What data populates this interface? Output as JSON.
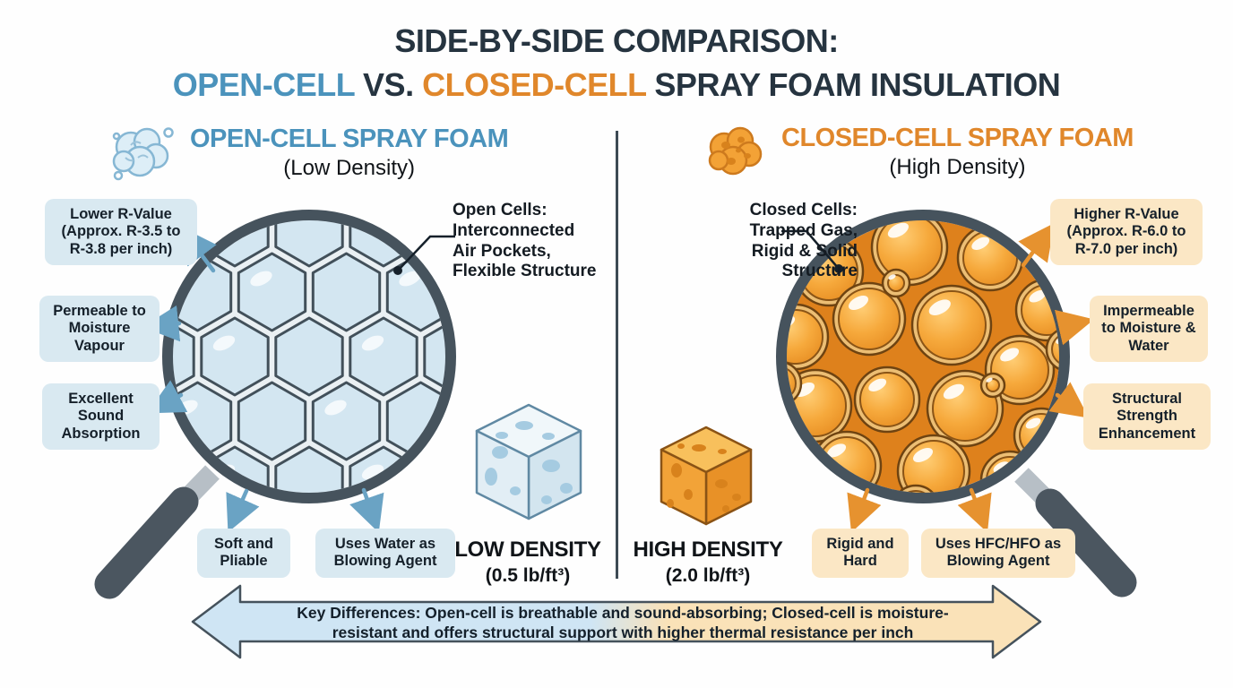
{
  "title": {
    "line1": "SIDE-BY-SIDE COMPARISON:",
    "open": "OPEN-CELL",
    "vs": " VS. ",
    "closed": "CLOSED-CELL",
    "rest": " SPRAY FOAM INSULATION"
  },
  "open_section": {
    "heading": "OPEN-CELL SPRAY FOAM",
    "subheading": "(Low Density)",
    "icon": "foam-cloud-icon",
    "note_title": "Open Cells:",
    "note_body": "Interconnected\nAir Pockets,\nFlexible Structure",
    "labels": {
      "r_value_title": "Lower R-Value",
      "r_value_detail": "(Approx. R-3.5 to R-3.8 per inch)",
      "moisture": "Permeable to Moisture Vapour",
      "sound": "Excellent Sound Absorption",
      "texture": "Soft and Pliable",
      "blowing_agent": "Uses Water as Blowing Agent"
    },
    "density_label": "LOW DENSITY",
    "density_value": "(0.5 lb/ft³)",
    "accent_color": "#4b93bc",
    "box_color": "#d9e9f1"
  },
  "closed_section": {
    "heading": "CLOSED-CELL SPRAY FOAM",
    "subheading": "(High Density)",
    "icon": "foam-blob-icon",
    "note_title": "Closed Cells:",
    "note_body": "Trapped Gas,\nRigid & Solid\nStructure",
    "labels": {
      "r_value_title": "Higher R-Value",
      "r_value_detail": "(Approx. R-6.0 to R-7.0 per inch)",
      "moisture": "Impermeable to Moisture & Water",
      "strength": "Structural Strength Enhancement",
      "texture": "Rigid and Hard",
      "blowing_agent": "Uses HFC/HFO as Blowing Agent"
    },
    "density_label": "HIGH DENSITY",
    "density_value": "(2.0 lb/ft³)",
    "accent_color": "#e0872b",
    "box_color": "#fbe7c5"
  },
  "footer": {
    "bold": "Key Differences:",
    "line1_rest": " Open-cell is breathable and sound-absorbing; Closed-cell is moisture-",
    "line2": "resistant and offers structural support with higher thermal resistance per inch"
  }
}
